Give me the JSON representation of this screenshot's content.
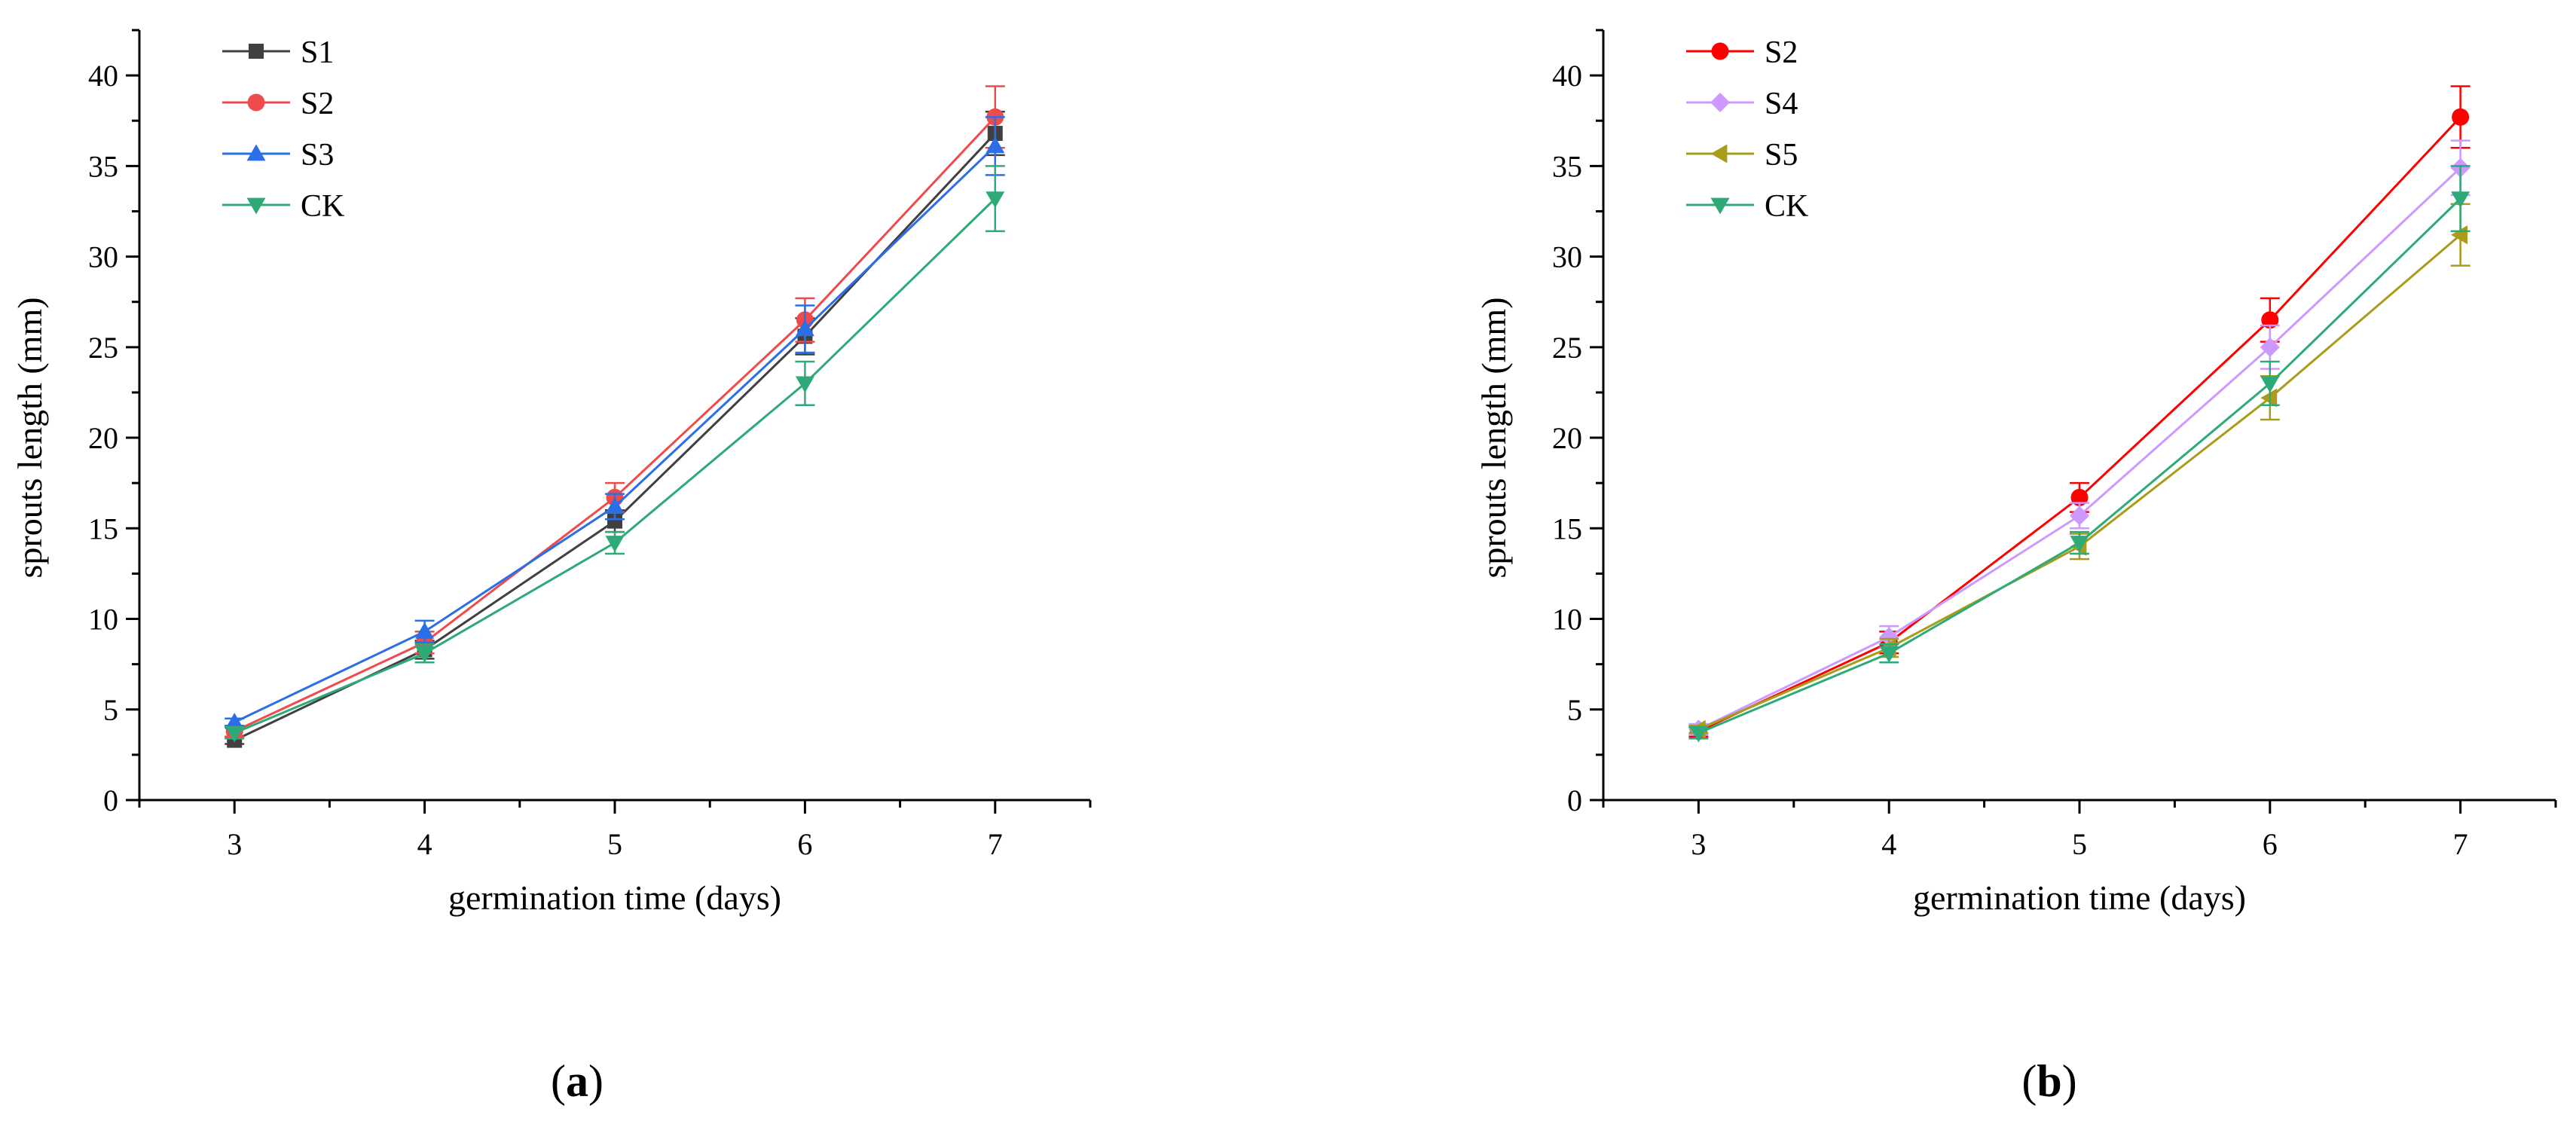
{
  "chart_data": [
    {
      "type": "line",
      "panel": "a",
      "panel_label": "a",
      "title": "",
      "xlabel": "germination time (days)",
      "ylabel": "sprouts length (mm)",
      "x": [
        3,
        4,
        5,
        6,
        7
      ],
      "xlim": [
        2.5,
        7.5
      ],
      "ylim": [
        0,
        42.5
      ],
      "xticks": [
        3,
        4,
        5,
        6,
        7
      ],
      "yticks": [
        0,
        5,
        10,
        15,
        20,
        25,
        30,
        35,
        40
      ],
      "legend_position": "top-left",
      "series": [
        {
          "name": "S1",
          "color": "#404040",
          "marker": "square",
          "values": [
            3.3,
            8.3,
            15.4,
            25.6,
            36.8
          ],
          "errors": [
            0.2,
            0.5,
            0.6,
            1.0,
            1.2
          ]
        },
        {
          "name": "S2",
          "color": "#ef4b4b",
          "marker": "circle",
          "values": [
            3.8,
            8.7,
            16.7,
            26.5,
            37.7
          ],
          "errors": [
            0.3,
            0.6,
            0.8,
            1.2,
            1.7
          ]
        },
        {
          "name": "S3",
          "color": "#2a6ee8",
          "marker": "triangle-up",
          "values": [
            4.3,
            9.3,
            16.2,
            26.0,
            36.1
          ],
          "errors": [
            0.2,
            0.6,
            0.7,
            1.3,
            1.6
          ]
        },
        {
          "name": "CK",
          "color": "#2eaa78",
          "marker": "triangle-down",
          "values": [
            3.7,
            8.1,
            14.2,
            23.0,
            33.2
          ],
          "errors": [
            0.3,
            0.5,
            0.6,
            1.2,
            1.8
          ]
        }
      ]
    },
    {
      "type": "line",
      "panel": "b",
      "panel_label": "b",
      "title": "",
      "xlabel": "germination time (days)",
      "ylabel": "sprouts length (mm)",
      "x": [
        3,
        4,
        5,
        6,
        7
      ],
      "xlim": [
        2.5,
        7.5
      ],
      "ylim": [
        0,
        42.5
      ],
      "xticks": [
        3,
        4,
        5,
        6,
        7
      ],
      "yticks": [
        0,
        5,
        10,
        15,
        20,
        25,
        30,
        35,
        40
      ],
      "legend_position": "top-left",
      "series": [
        {
          "name": "S2",
          "color": "#ff0000",
          "marker": "circle",
          "values": [
            3.8,
            8.7,
            16.7,
            26.5,
            37.7
          ],
          "errors": [
            0.3,
            0.6,
            0.8,
            1.2,
            1.7
          ]
        },
        {
          "name": "S4",
          "color": "#cc99ff",
          "marker": "diamond",
          "values": [
            3.9,
            9.0,
            15.7,
            25.0,
            34.9
          ],
          "errors": [
            0.3,
            0.6,
            0.7,
            1.2,
            1.5
          ]
        },
        {
          "name": "S5",
          "color": "#a89c1a",
          "marker": "triangle-left",
          "values": [
            3.9,
            8.4,
            14.0,
            22.2,
            31.2
          ],
          "errors": [
            0.2,
            0.5,
            0.7,
            1.2,
            1.7
          ]
        },
        {
          "name": "CK",
          "color": "#2eaa78",
          "marker": "triangle-down",
          "values": [
            3.7,
            8.1,
            14.2,
            23.0,
            33.2
          ],
          "errors": [
            0.3,
            0.5,
            0.6,
            1.2,
            1.8
          ]
        }
      ]
    }
  ]
}
